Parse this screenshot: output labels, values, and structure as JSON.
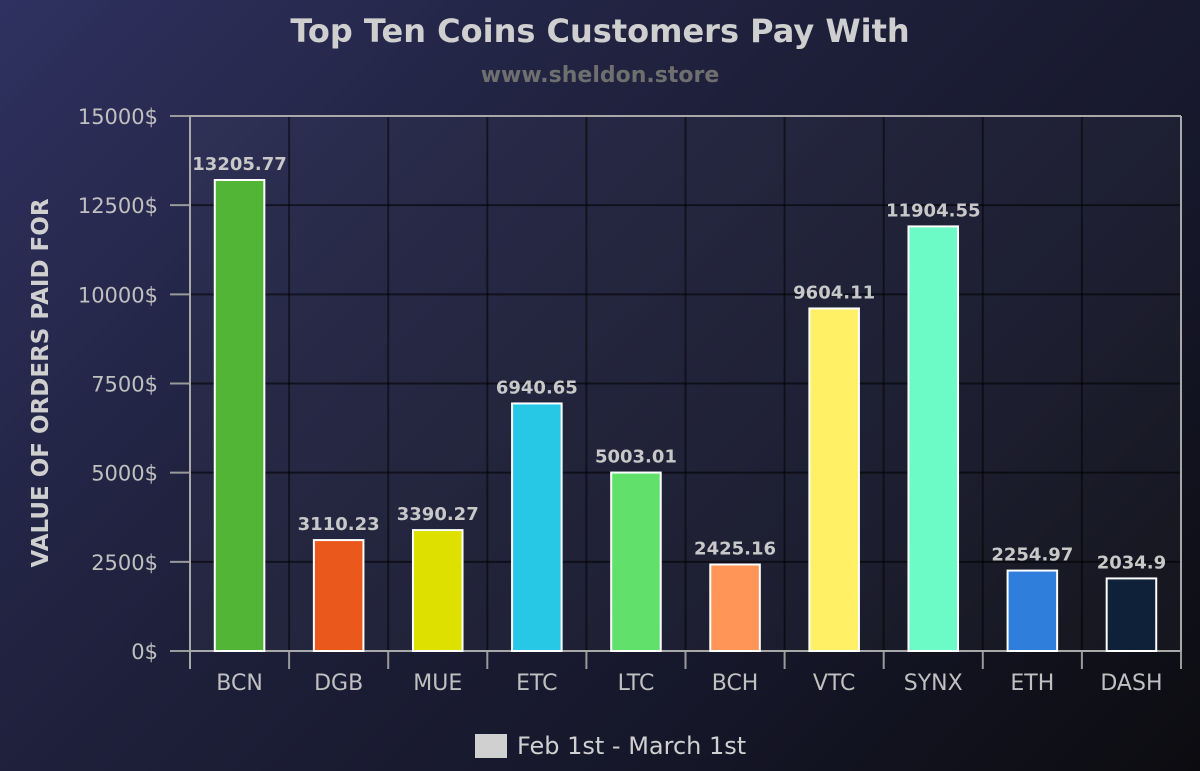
{
  "chart_data": {
    "type": "bar",
    "title": "Top Ten Coins Customers Pay With",
    "subtitle": "www.sheldon.store",
    "xlabel": "",
    "ylabel": "VALUE OF ORDERS PAID FOR",
    "ylim": [
      0,
      15000
    ],
    "yticks": [
      0,
      2500,
      5000,
      7500,
      10000,
      12500,
      15000
    ],
    "ytick_labels": [
      "0$",
      "2500$",
      "5000$",
      "7500$",
      "10000$",
      "12500$",
      "15000$"
    ],
    "categories": [
      "BCN",
      "DGB",
      "MUE",
      "ETC",
      "LTC",
      "BCH",
      "VTC",
      "SYNX",
      "ETH",
      "DASH"
    ],
    "series": [
      {
        "name": "Feb 1st - March 1st",
        "values": [
          13205.77,
          3110.23,
          3390.27,
          6940.65,
          5003.01,
          2425.16,
          9604.11,
          11904.55,
          2254.97,
          2034.9
        ],
        "labels": [
          "13205.77",
          "3110.23",
          "3390.27",
          "6940.65",
          "5003.01",
          "2425.16",
          "9604.11",
          "11904.55",
          "2254.97",
          "2034.9"
        ],
        "colors": [
          "#52b535",
          "#ea581c",
          "#dee000",
          "#26c8e6",
          "#62e06c",
          "#ff9658",
          "#fff066",
          "#6cfac6",
          "#2f7edb",
          "#0f2138"
        ]
      }
    ],
    "legend_position": "bottom-center",
    "grid": true
  },
  "legend": {
    "label": "Feb 1st - March 1st",
    "color": "#d0d0d0"
  }
}
